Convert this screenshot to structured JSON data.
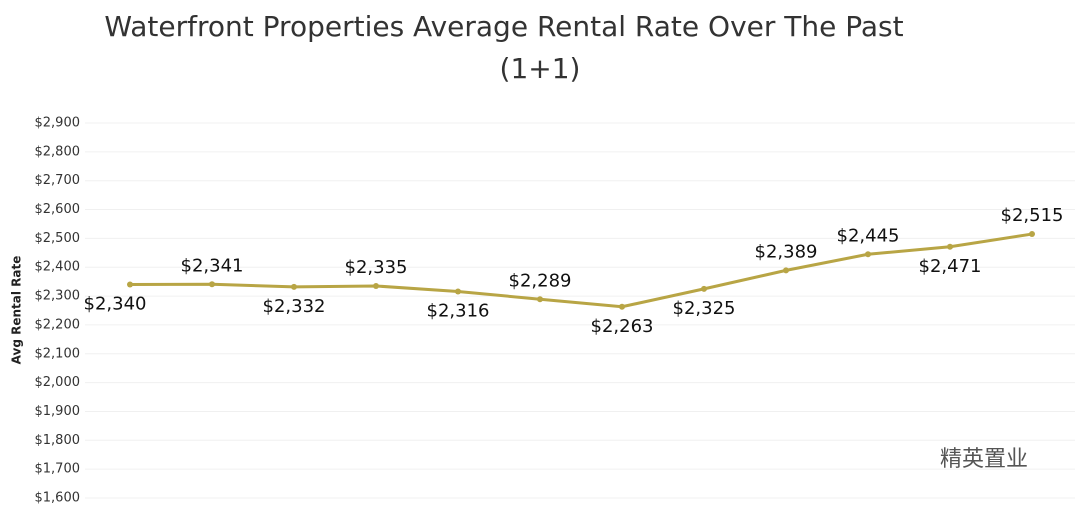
{
  "chart_data": {
    "type": "line",
    "title": "Waterfront Properties Average Rental Rate Over The Past",
    "subtitle": "(1+1)",
    "y_label": "Avg Rental Rate",
    "watermark": "精英置业",
    "categories": [
      null,
      null,
      null,
      null,
      null,
      null,
      null,
      null,
      null,
      null,
      null,
      null
    ],
    "series": [
      {
        "name": null,
        "color": "#b8a545",
        "values": [
          2340,
          2341,
          2332,
          2335,
          2316,
          2289,
          2263,
          2325,
          2389,
          2445,
          2471,
          2515
        ],
        "value_labels": [
          "$2,340",
          "$2,341",
          "$2,332",
          "$2,335",
          "$2,316",
          "$2,289",
          "$2,263",
          "$2,325",
          "$2,389",
          "$2,445",
          "$2,471",
          "$2,515"
        ]
      }
    ],
    "ylim": [
      1600,
      2900
    ],
    "yticks": [
      {
        "value": 1600,
        "label": "$1,600"
      },
      {
        "value": 1700,
        "label": "$1,700"
      },
      {
        "value": 1800,
        "label": "$1,800"
      },
      {
        "value": 1900,
        "label": "$1,900"
      },
      {
        "value": 2000,
        "label": "$2,000"
      },
      {
        "value": 2100,
        "label": "$2,100"
      },
      {
        "value": 2200,
        "label": "$2,200"
      },
      {
        "value": 2300,
        "label": "$2,300"
      },
      {
        "value": 2400,
        "label": "$2,400"
      },
      {
        "value": 2500,
        "label": "$2,500"
      },
      {
        "value": 2600,
        "label": "$2,600"
      },
      {
        "value": 2700,
        "label": "$2,700"
      },
      {
        "value": 2800,
        "label": "$2,800"
      },
      {
        "value": 2900,
        "label": "$2,900"
      }
    ],
    "grid": true
  }
}
